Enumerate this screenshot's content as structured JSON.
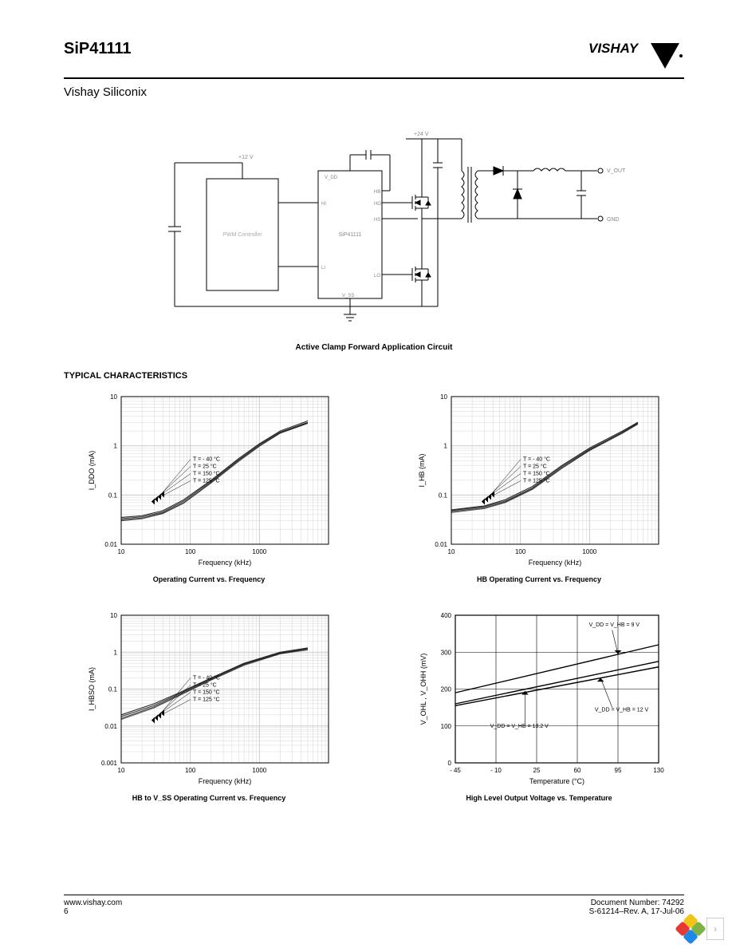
{
  "header": {
    "part_number": "SiP41111",
    "brand": "VISHAY",
    "subtitle": "Vishay Siliconix"
  },
  "circuit": {
    "caption": "Active Clamp Forward Application Circuit",
    "blocks": {
      "pwm": "PWM Controller",
      "chip": "SiP41111"
    },
    "labels": {
      "vin_top": "+12 V",
      "v24": "+24 V",
      "vdd": "V_DD",
      "hb": "HB",
      "hi": "HI",
      "ho": "HO",
      "hs": "HS",
      "li": "LI",
      "lo": "LO",
      "vss": "V_SS",
      "vout": "V_OUT",
      "gnd": "GND"
    }
  },
  "section_header": "TYPICAL CHARACTERISTICS",
  "temp_labels": [
    "T = - 40 °C",
    "T = 25 °C",
    "T = 150 °C",
    "T = 125 °C"
  ],
  "volt_labels": [
    "V_DD = V_HB = 9 V",
    "V_DD = V_HB = 12 V",
    "V_DD = V_HB = 13.2 V"
  ],
  "chart1": {
    "title": "Operating Current vs. Frequency",
    "ylabel": "I_DDO  (mA)",
    "xlabel": "Frequency (kHz)",
    "xticks": [
      "10",
      "100",
      "1000"
    ],
    "yticks": [
      "0.01",
      "0.1",
      "1",
      "10"
    ],
    "type": "loglog",
    "line_color": "#000000",
    "grid_color": "#cccccc",
    "background": "#ffffff",
    "series_paths": [
      [
        [
          10,
          0.035
        ],
        [
          20,
          0.038
        ],
        [
          40,
          0.048
        ],
        [
          80,
          0.08
        ],
        [
          200,
          0.2
        ],
        [
          500,
          0.55
        ],
        [
          1000,
          1.1
        ],
        [
          2000,
          2.0
        ],
        [
          5000,
          3.2
        ]
      ],
      [
        [
          10,
          0.033
        ],
        [
          20,
          0.036
        ],
        [
          40,
          0.045
        ],
        [
          80,
          0.075
        ],
        [
          200,
          0.19
        ],
        [
          500,
          0.52
        ],
        [
          1000,
          1.05
        ],
        [
          2000,
          1.9
        ],
        [
          5000,
          3.0
        ]
      ],
      [
        [
          10,
          0.031
        ],
        [
          20,
          0.034
        ],
        [
          40,
          0.043
        ],
        [
          80,
          0.07
        ],
        [
          200,
          0.18
        ],
        [
          500,
          0.5
        ],
        [
          1000,
          1.0
        ],
        [
          2000,
          1.85
        ],
        [
          5000,
          2.9
        ]
      ],
      [
        [
          10,
          0.03
        ],
        [
          20,
          0.033
        ],
        [
          40,
          0.042
        ],
        [
          80,
          0.068
        ],
        [
          200,
          0.175
        ],
        [
          500,
          0.48
        ],
        [
          1000,
          0.98
        ],
        [
          2000,
          1.8
        ],
        [
          5000,
          2.85
        ]
      ]
    ]
  },
  "chart2": {
    "title": "HB Operating Current vs. Frequency",
    "ylabel": "I_HB  (mA)",
    "xlabel": "Frequency (kHz)",
    "xticks": [
      "10",
      "100",
      "1000"
    ],
    "yticks": [
      "0.01",
      "0.1",
      "1",
      "10"
    ],
    "type": "loglog",
    "line_color": "#000000",
    "grid_color": "#cccccc",
    "series_paths": [
      [
        [
          10,
          0.05
        ],
        [
          30,
          0.06
        ],
        [
          60,
          0.08
        ],
        [
          150,
          0.15
        ],
        [
          400,
          0.4
        ],
        [
          1000,
          0.9
        ],
        [
          3000,
          2.0
        ],
        [
          5000,
          3.0
        ]
      ],
      [
        [
          10,
          0.048
        ],
        [
          30,
          0.058
        ],
        [
          60,
          0.075
        ],
        [
          150,
          0.14
        ],
        [
          400,
          0.38
        ],
        [
          1000,
          0.85
        ],
        [
          3000,
          1.9
        ],
        [
          5000,
          2.9
        ]
      ],
      [
        [
          10,
          0.046
        ],
        [
          30,
          0.055
        ],
        [
          60,
          0.072
        ],
        [
          150,
          0.135
        ],
        [
          400,
          0.36
        ],
        [
          1000,
          0.82
        ],
        [
          3000,
          1.85
        ],
        [
          5000,
          2.8
        ]
      ],
      [
        [
          10,
          0.044
        ],
        [
          30,
          0.053
        ],
        [
          60,
          0.07
        ],
        [
          150,
          0.13
        ],
        [
          400,
          0.35
        ],
        [
          1000,
          0.8
        ],
        [
          3000,
          1.8
        ],
        [
          5000,
          2.75
        ]
      ]
    ]
  },
  "chart3": {
    "title": "HB to V_SS Operating Current vs. Frequency",
    "ylabel": "I_HBSO  (mA)",
    "xlabel": "Frequency (kHz)",
    "xticks": [
      "10",
      "100",
      "1000"
    ],
    "yticks": [
      "0.001",
      "0.01",
      "0.1",
      "1",
      "10"
    ],
    "type": "loglog",
    "line_color": "#000000",
    "grid_color": "#cccccc",
    "series_paths": [
      [
        [
          10,
          0.02
        ],
        [
          30,
          0.04
        ],
        [
          70,
          0.08
        ],
        [
          200,
          0.2
        ],
        [
          600,
          0.5
        ],
        [
          2000,
          1.0
        ],
        [
          5000,
          1.3
        ]
      ],
      [
        [
          10,
          0.018
        ],
        [
          30,
          0.036
        ],
        [
          70,
          0.075
        ],
        [
          200,
          0.19
        ],
        [
          600,
          0.48
        ],
        [
          2000,
          0.95
        ],
        [
          5000,
          1.25
        ]
      ],
      [
        [
          10,
          0.016
        ],
        [
          30,
          0.033
        ],
        [
          70,
          0.07
        ],
        [
          200,
          0.18
        ],
        [
          600,
          0.46
        ],
        [
          2000,
          0.92
        ],
        [
          5000,
          1.2
        ]
      ],
      [
        [
          10,
          0.015
        ],
        [
          30,
          0.031
        ],
        [
          70,
          0.067
        ],
        [
          200,
          0.175
        ],
        [
          600,
          0.44
        ],
        [
          2000,
          0.9
        ],
        [
          5000,
          1.15
        ]
      ]
    ]
  },
  "chart4": {
    "title": "High Level Output Voltage vs. Temperature",
    "ylabel": "V_OHL , V_OHH  (mV)",
    "xlabel": "Temperature (°C)",
    "xticks": [
      "-45",
      "-10",
      "25",
      "60",
      "95",
      "130"
    ],
    "yticks": [
      "0",
      "100",
      "200",
      "300",
      "400"
    ],
    "type": "linear",
    "line_color": "#000000",
    "grid_color": "#000000",
    "xlim": [
      -45,
      130
    ],
    "ylim": [
      0,
      400
    ],
    "series": [
      {
        "label_idx": 0,
        "pts": [
          [
            -45,
            190
          ],
          [
            130,
            320
          ]
        ]
      },
      {
        "label_idx": 1,
        "pts": [
          [
            -45,
            160
          ],
          [
            130,
            275
          ]
        ]
      },
      {
        "label_idx": 2,
        "pts": [
          [
            -45,
            155
          ],
          [
            130,
            260
          ]
        ]
      }
    ]
  },
  "footer": {
    "url": "www.vishay.com",
    "page": "6",
    "docnum": "Document Number: 74292",
    "rev": "S-61214–Rev. A, 17-Jul-06"
  },
  "corner_colors": [
    "#f0c419",
    "#7cb342",
    "#e53935",
    "#1e88e5"
  ]
}
